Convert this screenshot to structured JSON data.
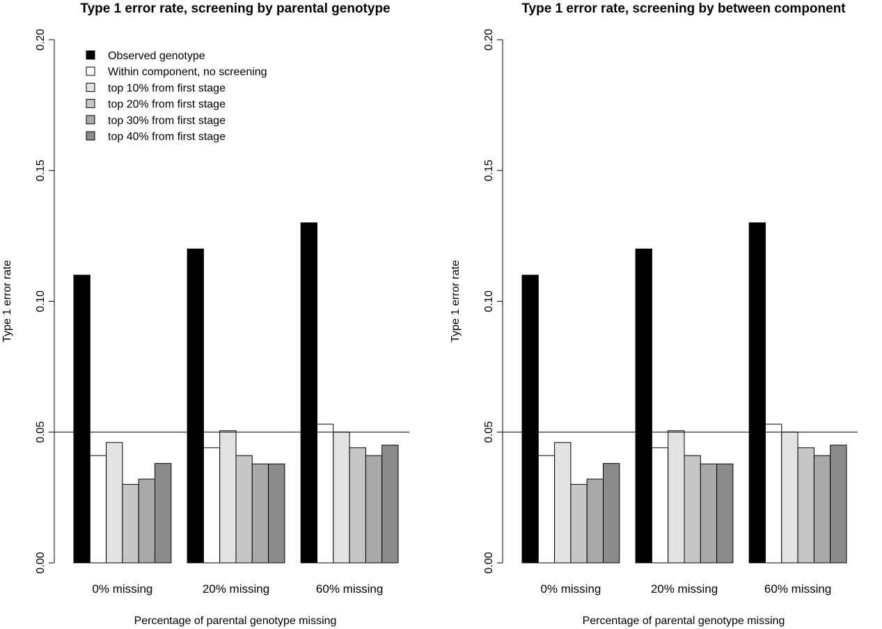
{
  "chart_data": [
    {
      "type": "bar",
      "title": "Type 1 error rate, screening by parental genotype",
      "xlabel": "Percentage of parental genotype missing",
      "ylabel": "Type 1 error rate",
      "ylim": [
        0,
        0.2
      ],
      "yticks": [
        "0.00",
        "0.05",
        "0.10",
        "0.15",
        "0.20"
      ],
      "reference_line": 0.05,
      "categories": [
        "0% missing",
        "20% missing",
        "60% missing"
      ],
      "legend_position": "top-left",
      "series": [
        {
          "name": "Observed genotype",
          "color": "#000000",
          "values": [
            0.11,
            0.12,
            0.13
          ]
        },
        {
          "name": "Within component, no screening",
          "color": "#ffffff",
          "values": [
            0.041,
            0.044,
            0.053
          ]
        },
        {
          "name": "top 10% from first stage",
          "color": "#e3e3e3",
          "values": [
            0.046,
            0.0505,
            0.05
          ]
        },
        {
          "name": "top 20% from first stage",
          "color": "#c6c6c6",
          "values": [
            0.03,
            0.041,
            0.044
          ]
        },
        {
          "name": "top 30% from first stage",
          "color": "#a9a9a9",
          "values": [
            0.032,
            0.0378,
            0.041
          ]
        },
        {
          "name": "top 40% from first stage",
          "color": "#8b8b8b",
          "values": [
            0.038,
            0.0378,
            0.045
          ]
        }
      ]
    },
    {
      "type": "bar",
      "title": "Type 1 error rate, screening by between component",
      "xlabel": "Percentage of parental genotype missing",
      "ylabel": "Type 1 error rate",
      "ylim": [
        0,
        0.2
      ],
      "yticks": [
        "0.00",
        "0.05",
        "0.10",
        "0.15",
        "0.20"
      ],
      "reference_line": 0.05,
      "categories": [
        "0% missing",
        "20% missing",
        "60% missing"
      ],
      "series": [
        {
          "color": "#000000",
          "values": [
            0.11,
            0.12,
            0.13
          ]
        },
        {
          "color": "#ffffff",
          "values": [
            0.041,
            0.044,
            0.053
          ]
        },
        {
          "color": "#e3e3e3",
          "values": [
            0.046,
            0.0505,
            0.05
          ]
        },
        {
          "color": "#c6c6c6",
          "values": [
            0.03,
            0.041,
            0.044
          ]
        },
        {
          "color": "#a9a9a9",
          "values": [
            0.032,
            0.0378,
            0.041
          ]
        },
        {
          "color": "#8b8b8b",
          "values": [
            0.038,
            0.0378,
            0.045
          ]
        }
      ]
    }
  ]
}
